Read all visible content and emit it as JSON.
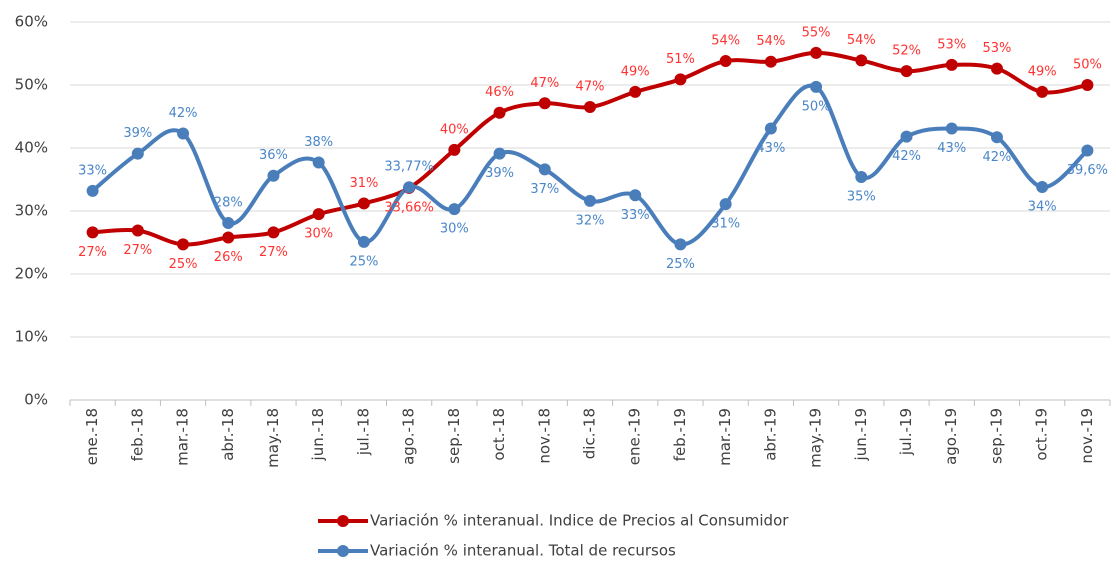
{
  "chart_data": {
    "type": "line",
    "categories": [
      "ene.-18",
      "feb.-18",
      "mar.-18",
      "abr.-18",
      "may.-18",
      "jun.-18",
      "jul.-18",
      "ago.-18",
      "sep.-18",
      "oct.-18",
      "nov.-18",
      "dic.-18",
      "ene.-19",
      "feb.-19",
      "mar.-19",
      "abr.-19",
      "may.-19",
      "jun.-19",
      "jul.-19",
      "ago.-19",
      "sep.-19",
      "oct.-19",
      "nov.-19"
    ],
    "series": [
      {
        "name": "Variación % interanual. Indice de Precios al Consumidor",
        "color": "#c00000",
        "values": [
          26.6,
          26.9,
          24.7,
          25.8,
          26.6,
          29.5,
          31.2,
          33.66,
          39.7,
          45.6,
          47.1,
          46.5,
          48.9,
          50.9,
          53.8,
          53.7,
          55.1,
          53.9,
          52.2,
          53.2,
          52.6,
          48.9,
          50.0
        ],
        "value_labels": [
          "27%",
          "27%",
          "25%",
          "26%",
          "27%",
          "30%",
          "31%",
          "33,66%",
          "40%",
          "46%",
          "47%",
          "47%",
          "49%",
          "51%",
          "54%",
          "54%",
          "55%",
          "54%",
          "52%",
          "53%",
          "53%",
          "49%",
          "50%"
        ],
        "label_color": "#ff3333"
      },
      {
        "name": "Variación % interanual. Total de recursos",
        "color": "#4a7ebb",
        "values": [
          33.2,
          39.1,
          42.3,
          28.1,
          35.6,
          37.7,
          25.1,
          33.77,
          30.3,
          39.1,
          36.6,
          31.6,
          32.5,
          24.7,
          31.1,
          43.1,
          49.7,
          35.4,
          41.8,
          43.1,
          41.7,
          33.8,
          39.6
        ],
        "value_labels": [
          "33%",
          "39%",
          "42%",
          "28%",
          "36%",
          "38%",
          "25%",
          "33,77%",
          "30%",
          "39%",
          "37%",
          "32%",
          "33%",
          "25%",
          "31%",
          "43%",
          "50%",
          "35%",
          "42%",
          "43%",
          "42%",
          "34%",
          "39,6%"
        ],
        "label_color": "#4a86c8"
      }
    ],
    "ylim": [
      0,
      60
    ],
    "yticks": [
      {
        "value": 0,
        "label": "0%"
      },
      {
        "value": 10,
        "label": "10%"
      },
      {
        "value": 20,
        "label": "20%"
      },
      {
        "value": 30,
        "label": "30%"
      },
      {
        "value": 40,
        "label": "40%"
      },
      {
        "value": 50,
        "label": "50%"
      },
      {
        "value": 60,
        "label": "60%"
      }
    ],
    "grid": true,
    "smooth": true,
    "legend": "bottom"
  }
}
